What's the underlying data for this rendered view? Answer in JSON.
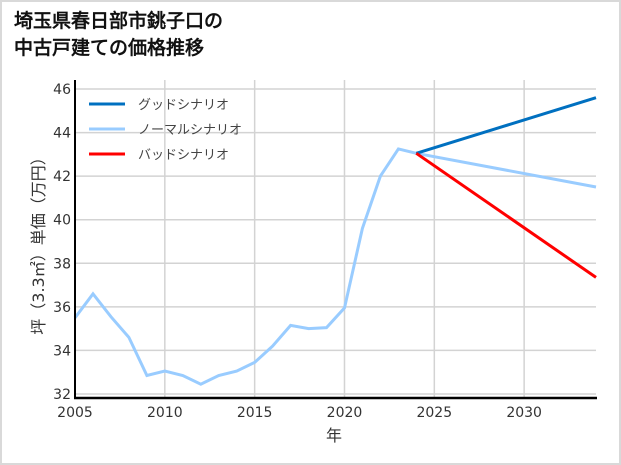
{
  "title": "埼玉県春日部市銚子口の\n中古戸建ての価格推移",
  "chart_data": {
    "type": "line",
    "title": "埼玉県春日部市銚子口の中古戸建ての価格推移",
    "xlabel": "年",
    "ylabel": "坪（3.3㎡）単価（万円）",
    "xlim": [
      2005,
      2034
    ],
    "ylim": [
      32,
      46
    ],
    "x_ticks": [
      2005,
      2010,
      2015,
      2020,
      2025,
      2030
    ],
    "y_ticks": [
      32,
      34,
      36,
      38,
      40,
      42,
      44,
      46
    ],
    "grid": true,
    "legend_position": "upper left",
    "series": [
      {
        "name": "グッドシナリオ",
        "color": "#0070c0",
        "x": [
          2024,
          2034
        ],
        "values": [
          43.05,
          45.6
        ]
      },
      {
        "name": "ノーマルシナリオ",
        "color": "#99ccff",
        "x": [
          2005,
          2006,
          2007,
          2008,
          2009,
          2010,
          2011,
          2012,
          2013,
          2014,
          2015,
          2016,
          2017,
          2018,
          2019,
          2020,
          2021,
          2022,
          2023,
          2024,
          2034
        ],
        "values": [
          35.5,
          36.6,
          35.55,
          34.6,
          32.85,
          33.05,
          32.85,
          32.45,
          32.85,
          33.05,
          33.45,
          34.2,
          35.15,
          35.0,
          35.05,
          35.95,
          39.6,
          42.0,
          43.25,
          43.05,
          41.5
        ]
      },
      {
        "name": "バッドシナリオ",
        "color": "#ff0000",
        "x": [
          2024,
          2034
        ],
        "values": [
          43.05,
          37.35
        ]
      }
    ]
  }
}
